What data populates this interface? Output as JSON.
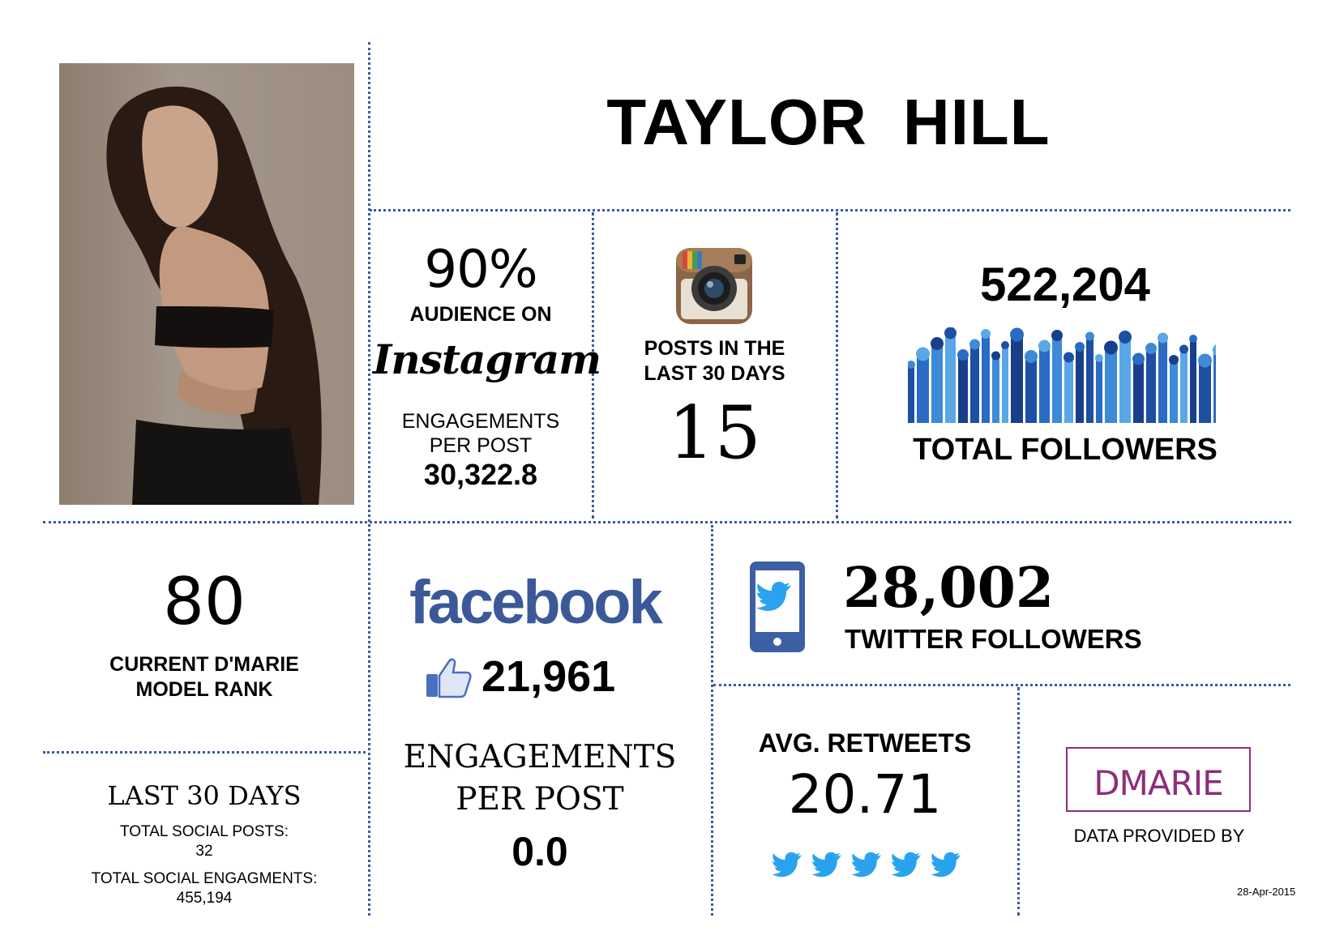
{
  "name": {
    "first": "TAYLOR",
    "last": "HILL"
  },
  "instagram_audience": {
    "percent": "90%",
    "label": "AUDIENCE ON",
    "platform": "Instagram",
    "engagements_label_1": "ENGAGEMENTS",
    "engagements_label_2": "PER POST",
    "engagements_value": "30,322.8"
  },
  "instagram_posts": {
    "label_1": "POSTS IN THE",
    "label_2": "LAST 30 DAYS",
    "value": "15",
    "icon": "instagram-camera-icon"
  },
  "total_followers": {
    "value": "522,204",
    "label": "TOTAL FOLLOWERS",
    "icon": "crowd-icon"
  },
  "rank": {
    "value": "80",
    "label_1": "CURRENT D'MARIE",
    "label_2": "MODEL RANK"
  },
  "last30": {
    "title": "LAST 30 DAYS",
    "posts_label": "TOTAL SOCIAL POSTS:",
    "posts_value": "32",
    "engagements_label": "TOTAL SOCIAL ENGAGMENTS:",
    "engagements_value": "455,194"
  },
  "facebook": {
    "logo": "facebook",
    "likes": "21,961",
    "engagements_label_1": "ENGAGEMENTS",
    "engagements_label_2": "PER POST",
    "engagements_value": "0.0",
    "icon": "thumbs-up-icon"
  },
  "twitter": {
    "followers": "28,002",
    "followers_label": "TWITTER FOLLOWERS",
    "retweets_label": "AVG. RETWEETS",
    "retweets_value": "20.71",
    "icon": "phone-twitter-icon"
  },
  "provider": {
    "logo": "DMARIE",
    "label": "DATA PROVIDED BY",
    "date": "28-Apr-2015"
  },
  "colors": {
    "divider": "#3a5aa0",
    "facebook": "#3b5998",
    "twitter": "#2aa3ef",
    "crowd": "#1f5fb5",
    "dmarie": "#8e2e7a"
  }
}
